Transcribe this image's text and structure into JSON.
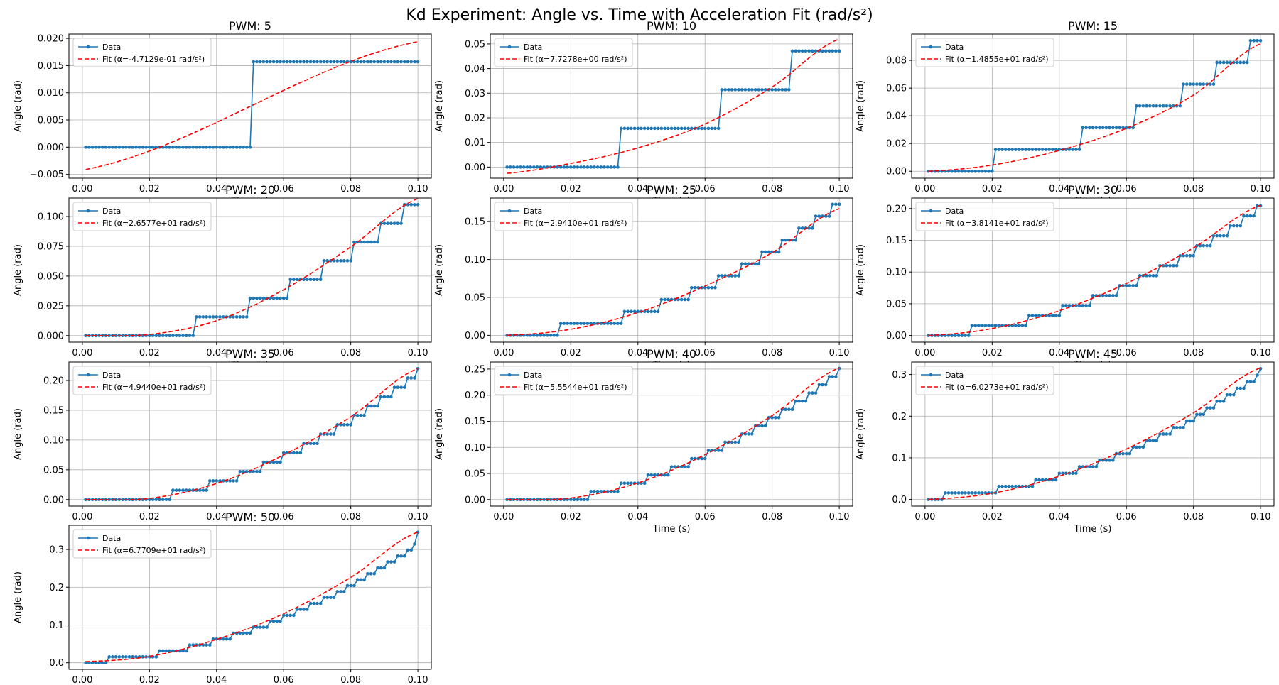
{
  "figure": {
    "title": "Kd Experiment: Angle vs. Time with Acceleration Fit (rad/s²)"
  },
  "colors": {
    "data": "#1f77b4",
    "fit": "#ff0000",
    "grid": "#b0b0b0",
    "axes": "#000000"
  },
  "chart_data": [
    {
      "type": "line",
      "title": "PWM: 5",
      "xlabel": "Time (s)",
      "ylabel": "Angle (rad)",
      "xlim": [
        -0.004,
        0.104
      ],
      "ylim": [
        -0.0057,
        0.0208
      ],
      "xticks": [
        0.0,
        0.02,
        0.04,
        0.06,
        0.08,
        0.1
      ],
      "xtick_labels": [
        "0.00",
        "0.02",
        "0.04",
        "0.06",
        "0.08",
        "0.10"
      ],
      "yticks": [
        -0.005,
        0,
        0.005,
        0.01,
        0.015,
        0.02
      ],
      "ytick_labels": [
        "−0.005",
        "0.000",
        "0.005",
        "0.010",
        "0.015",
        "0.020"
      ],
      "grid": true,
      "legend": "top-left",
      "legend_entries": [
        "Data",
        "Fit (α=-4.7129e-01 rad/s²)"
      ],
      "series": [
        {
          "name": "Data",
          "kind": "step",
          "step_size": 0.015708,
          "steps": [
            0.0505
          ],
          "final": 0.015708
        },
        {
          "name": "Fit (α=-4.7129e-01 rad/s²)",
          "kind": "fit",
          "x": [
            0.001,
            0.1
          ],
          "y": [
            -0.0041,
            0.0194
          ]
        }
      ]
    },
    {
      "type": "line",
      "title": "PWM: 10",
      "xlabel": "Time (s)",
      "ylabel": "Angle (rad)",
      "xlim": [
        -0.004,
        0.104
      ],
      "ylim": [
        -0.0045,
        0.054
      ],
      "xticks": [
        0.0,
        0.02,
        0.04,
        0.06,
        0.08,
        0.1
      ],
      "xtick_labels": [
        "0.00",
        "0.02",
        "0.04",
        "0.06",
        "0.08",
        "0.10"
      ],
      "yticks": [
        0,
        0.01,
        0.02,
        0.03,
        0.04,
        0.05
      ],
      "ytick_labels": [
        "0.00",
        "0.01",
        "0.02",
        "0.03",
        "0.04",
        "0.05"
      ],
      "grid": true,
      "legend": "top-left",
      "legend_entries": [
        "Data",
        "Fit (α=7.7278e+00 rad/s²)"
      ],
      "series": [
        {
          "name": "Data",
          "kind": "step",
          "step_size": 0.015708,
          "steps": [
            0.0345,
            0.0645,
            0.0855
          ],
          "final": 0.047124
        },
        {
          "name": "Fit (α=7.7278e+00 rad/s²)",
          "kind": "fit",
          "x": [
            0.001,
            0.02,
            0.04,
            0.06,
            0.08,
            0.1
          ],
          "y": [
            -0.0025,
            0.0015,
            0.0078,
            0.0175,
            0.0325,
            0.052
          ]
        }
      ]
    },
    {
      "type": "line",
      "title": "PWM: 15",
      "xlabel": "Time (s)",
      "ylabel": "Angle (rad)",
      "xlim": [
        -0.004,
        0.104
      ],
      "ylim": [
        -0.005,
        0.099
      ],
      "xticks": [
        0.0,
        0.02,
        0.04,
        0.06,
        0.08,
        0.1
      ],
      "xtick_labels": [
        "0.00",
        "0.02",
        "0.04",
        "0.06",
        "0.08",
        "0.10"
      ],
      "yticks": [
        0,
        0.02,
        0.04,
        0.06,
        0.08
      ],
      "ytick_labels": [
        "0.00",
        "0.02",
        "0.04",
        "0.06",
        "0.08"
      ],
      "grid": true,
      "legend": "top-left",
      "legend_entries": [
        "Data",
        "Fit (α=1.4855e+01 rad/s²)"
      ],
      "series": [
        {
          "name": "Data",
          "kind": "step",
          "step_size": 0.015708,
          "steps": [
            0.0205,
            0.0465,
            0.0625,
            0.0765,
            0.0865,
            0.0965
          ],
          "final": 0.094248
        },
        {
          "name": "Fit (α=1.4855e+01 rad/s²)",
          "kind": "fit",
          "x": [
            0.001,
            0.02,
            0.04,
            0.06,
            0.08,
            0.1
          ],
          "y": [
            0.0,
            0.0045,
            0.015,
            0.031,
            0.055,
            0.092
          ]
        }
      ]
    },
    {
      "type": "line",
      "title": "PWM: 20",
      "xlabel": "Time (s)",
      "ylabel": "Angle (rad)",
      "xlim": [
        -0.004,
        0.104
      ],
      "ylim": [
        -0.0055,
        0.1155
      ],
      "xticks": [
        0.0,
        0.02,
        0.04,
        0.06,
        0.08,
        0.1
      ],
      "xtick_labels": [
        "0.00",
        "0.02",
        "0.04",
        "0.06",
        "0.08",
        "0.10"
      ],
      "yticks": [
        0,
        0.025,
        0.05,
        0.075,
        0.1
      ],
      "ytick_labels": [
        "0.000",
        "0.025",
        "0.050",
        "0.075",
        "0.100"
      ],
      "grid": true,
      "legend": "top-left",
      "legend_entries": [
        "Data",
        "Fit (α=2.6577e+01 rad/s²)"
      ],
      "series": [
        {
          "name": "Data",
          "kind": "step",
          "step_size": 0.015708,
          "steps": [
            0.0335,
            0.0495,
            0.0615,
            0.0715,
            0.0805,
            0.0885,
            0.0955
          ],
          "final": 0.109956
        },
        {
          "name": "Fit (α=2.6577e+01 rad/s²)",
          "kind": "fit",
          "x": [
            0.001,
            0.02,
            0.04,
            0.06,
            0.08,
            0.1
          ],
          "y": [
            0.0,
            0.001,
            0.0125,
            0.0385,
            0.0745,
            0.115
          ]
        }
      ]
    },
    {
      "type": "line",
      "title": "PWM: 25",
      "xlabel": "Time (s)",
      "ylabel": "Angle (rad)",
      "xlim": [
        -0.004,
        0.104
      ],
      "ylim": [
        -0.009,
        0.181
      ],
      "xticks": [
        0.0,
        0.02,
        0.04,
        0.06,
        0.08,
        0.1
      ],
      "xtick_labels": [
        "0.00",
        "0.02",
        "0.04",
        "0.06",
        "0.08",
        "0.10"
      ],
      "yticks": [
        0,
        0.05,
        0.1,
        0.15
      ],
      "ytick_labels": [
        "0.00",
        "0.05",
        "0.10",
        "0.15"
      ],
      "grid": true,
      "legend": "top-left",
      "legend_entries": [
        "Data",
        "Fit (α=2.9410e+01 rad/s²)"
      ],
      "series": [
        {
          "name": "Data",
          "kind": "step",
          "step_size": 0.015708,
          "steps": [
            0.0165,
            0.0355,
            0.0465,
            0.0555,
            0.0635,
            0.0705,
            0.0765,
            0.0825,
            0.0875,
            0.0925,
            0.0975,
            0.0995
          ],
          "final": 0.172788
        },
        {
          "name": "Fit (α=2.9410e+01 rad/s²)",
          "kind": "fit",
          "x": [
            0.001,
            0.02,
            0.04,
            0.06,
            0.08,
            0.1
          ],
          "y": [
            0.0,
            0.008,
            0.03,
            0.065,
            0.109,
            0.167
          ]
        }
      ]
    },
    {
      "type": "line",
      "title": "PWM: 30",
      "xlabel": "Time (s)",
      "ylabel": "Angle (rad)",
      "xlim": [
        -0.004,
        0.104
      ],
      "ylim": [
        -0.0105,
        0.2165
      ],
      "xticks": [
        0.0,
        0.02,
        0.04,
        0.06,
        0.08,
        0.1
      ],
      "xtick_labels": [
        "0.00",
        "0.02",
        "0.04",
        "0.06",
        "0.08",
        "0.10"
      ],
      "yticks": [
        0,
        0.05,
        0.1,
        0.15,
        0.2
      ],
      "ytick_labels": [
        "0.00",
        "0.05",
        "0.10",
        "0.15",
        "0.20"
      ],
      "grid": true,
      "legend": "top-left",
      "legend_entries": [
        "Data",
        "Fit (α=3.8141e+01 rad/s²)"
      ],
      "series": [
        {
          "name": "Data",
          "kind": "step",
          "step_size": 0.015708,
          "steps": [
            0.0135,
            0.0305,
            0.0405,
            0.0495,
            0.0575,
            0.0635,
            0.0695,
            0.0755,
            0.0805,
            0.0855,
            0.0905,
            0.0945,
            0.0985
          ],
          "final": 0.2042
        },
        {
          "name": "Fit (α=3.8141e+01 rad/s²)",
          "kind": "fit",
          "x": [
            0.001,
            0.02,
            0.04,
            0.06,
            0.08,
            0.1
          ],
          "y": [
            0.0,
            0.011,
            0.039,
            0.082,
            0.138,
            0.205
          ]
        }
      ]
    },
    {
      "type": "line",
      "title": "PWM: 35",
      "xlabel": "Time (s)",
      "ylabel": "Angle (rad)",
      "xlim": [
        -0.004,
        0.104
      ],
      "ylim": [
        -0.011,
        0.231
      ],
      "xticks": [
        0.0,
        0.02,
        0.04,
        0.06,
        0.08,
        0.1
      ],
      "xtick_labels": [
        "0.00",
        "0.02",
        "0.04",
        "0.06",
        "0.08",
        "0.10"
      ],
      "yticks": [
        0,
        0.05,
        0.1,
        0.15,
        0.2
      ],
      "ytick_labels": [
        "0.00",
        "0.05",
        "0.10",
        "0.15",
        "0.20"
      ],
      "grid": true,
      "legend": "top-left",
      "legend_entries": [
        "Data",
        "Fit (α=4.9440e+01 rad/s²)"
      ],
      "series": [
        {
          "name": "Data",
          "kind": "step",
          "step_size": 0.015708,
          "steps": [
            0.0265,
            0.0375,
            0.0465,
            0.0535,
            0.0595,
            0.0655,
            0.0705,
            0.0755,
            0.0805,
            0.0845,
            0.0885,
            0.0925,
            0.0965,
            0.0995
          ],
          "final": 0.219911
        },
        {
          "name": "Fit (α=4.9440e+01 rad/s²)",
          "kind": "fit",
          "x": [
            0.001,
            0.02,
            0.04,
            0.06,
            0.08,
            0.1
          ],
          "y": [
            0.0,
            0.002,
            0.027,
            0.075,
            0.139,
            0.22
          ]
        }
      ]
    },
    {
      "type": "line",
      "title": "PWM: 40",
      "xlabel": "Time (s)",
      "ylabel": "Angle (rad)",
      "xlim": [
        -0.004,
        0.104
      ],
      "ylim": [
        -0.0125,
        0.2635
      ],
      "xticks": [
        0.0,
        0.02,
        0.04,
        0.06,
        0.08,
        0.1
      ],
      "xtick_labels": [
        "0.00",
        "0.02",
        "0.04",
        "0.06",
        "0.08",
        "0.10"
      ],
      "yticks": [
        0,
        0.05,
        0.1,
        0.15,
        0.2,
        0.25
      ],
      "ytick_labels": [
        "0.00",
        "0.05",
        "0.10",
        "0.15",
        "0.20",
        "0.25"
      ],
      "grid": true,
      "legend": "top-left",
      "legend_entries": [
        "Data",
        "Fit (α=5.5544e+01 rad/s²)"
      ],
      "series": [
        {
          "name": "Data",
          "kind": "step",
          "step_size": 0.015708,
          "steps": [
            0.0255,
            0.0345,
            0.0425,
            0.0495,
            0.0555,
            0.0605,
            0.0655,
            0.0705,
            0.0745,
            0.0785,
            0.0825,
            0.0865,
            0.0905,
            0.0935,
            0.0965,
            0.0995
          ],
          "final": 0.251327
        },
        {
          "name": "Fit (α=5.5544e+01 rad/s²)",
          "kind": "fit",
          "x": [
            0.001,
            0.02,
            0.04,
            0.06,
            0.08,
            0.1
          ],
          "y": [
            0.0,
            0.003,
            0.032,
            0.086,
            0.161,
            0.252
          ]
        }
      ]
    },
    {
      "type": "line",
      "title": "PWM: 45",
      "xlabel": "Time (s)",
      "ylabel": "Angle (rad)",
      "xlim": [
        -0.004,
        0.104
      ],
      "ylim": [
        -0.016,
        0.33
      ],
      "xticks": [
        0.0,
        0.02,
        0.04,
        0.06,
        0.08,
        0.1
      ],
      "xtick_labels": [
        "0.00",
        "0.02",
        "0.04",
        "0.06",
        "0.08",
        "0.10"
      ],
      "yticks": [
        0,
        0.1,
        0.2,
        0.3
      ],
      "ytick_labels": [
        "0.0",
        "0.1",
        "0.2",
        "0.3"
      ],
      "grid": true,
      "legend": "top-left",
      "legend_entries": [
        "Data",
        "Fit (α=6.0273e+01 rad/s²)"
      ],
      "series": [
        {
          "name": "Data",
          "kind": "step",
          "step_size": 0.015708,
          "steps": [
            0.0055,
            0.0215,
            0.0325,
            0.0395,
            0.0455,
            0.0515,
            0.0565,
            0.0615,
            0.0655,
            0.0695,
            0.0735,
            0.0775,
            0.0805,
            0.0835,
            0.0865,
            0.0895,
            0.0925,
            0.0955,
            0.0985
          ],
          "final": 0.314159
        },
        {
          "name": "Fit (α=6.0273e+01 rad/s²)",
          "kind": "fit",
          "x": [
            0.001,
            0.02,
            0.04,
            0.06,
            0.08,
            0.1
          ],
          "y": [
            0.0,
            0.015,
            0.056,
            0.121,
            0.208,
            0.316
          ]
        }
      ]
    },
    {
      "type": "line",
      "title": "PWM: 50",
      "xlabel": "Time (s)",
      "ylabel": "Angle (rad)",
      "xlim": [
        -0.004,
        0.104
      ],
      "ylim": [
        -0.0175,
        0.364
      ],
      "xticks": [
        0.0,
        0.02,
        0.04,
        0.06,
        0.08,
        0.1
      ],
      "xtick_labels": [
        "0.00",
        "0.02",
        "0.04",
        "0.06",
        "0.08",
        "0.10"
      ],
      "yticks": [
        0,
        0.1,
        0.2,
        0.3
      ],
      "ytick_labels": [
        "0.0",
        "0.1",
        "0.2",
        "0.3"
      ],
      "grid": true,
      "legend": "top-left",
      "legend_entries": [
        "Data",
        "Fit (α=6.7709e+01 rad/s²)"
      ],
      "series": [
        {
          "name": "Data",
          "kind": "step",
          "step_size": 0.015708,
          "steps": [
            0.0075,
            0.0225,
            0.0315,
            0.0385,
            0.0445,
            0.0505,
            0.0555,
            0.0595,
            0.0635,
            0.0675,
            0.0715,
            0.0755,
            0.0785,
            0.0815,
            0.0845,
            0.0875,
            0.0905,
            0.0935,
            0.0965,
            0.0985,
            0.0995
          ],
          "final": 0.345575
        },
        {
          "name": "Fit (α=6.7709e+01 rad/s²)",
          "kind": "fit",
          "x": [
            0.001,
            0.02,
            0.04,
            0.06,
            0.08,
            0.1
          ],
          "y": [
            0.003,
            0.017,
            0.062,
            0.13,
            0.226,
            0.346
          ]
        }
      ]
    }
  ]
}
